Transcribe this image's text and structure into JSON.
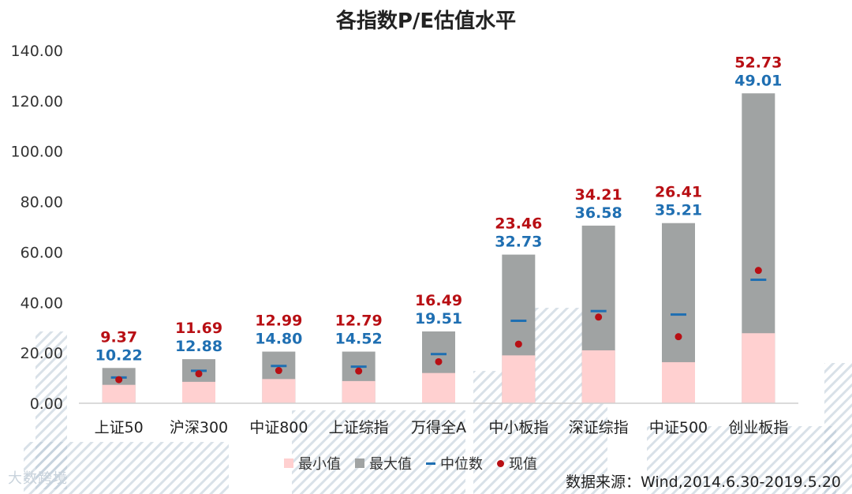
{
  "chart_data": {
    "type": "bar",
    "title": "各指数P/E估值水平",
    "categories": [
      "上证50",
      "沪深300",
      "中证800",
      "上证综指",
      "万得全A",
      "中小板指",
      "深证综指",
      "中证500",
      "创业板指"
    ],
    "ylim": [
      0,
      140
    ],
    "yticks": [
      "0.00",
      "20.00",
      "40.00",
      "60.00",
      "80.00",
      "100.00",
      "120.00",
      "140.00"
    ],
    "series": [
      {
        "name": "最小值",
        "values": [
          7.3,
          8.5,
          9.6,
          8.8,
          12.0,
          19.0,
          21.0,
          16.3,
          27.8
        ],
        "color": "#ffd0d0"
      },
      {
        "name": "最大值",
        "values": [
          14.0,
          17.5,
          20.5,
          20.5,
          28.5,
          59.0,
          70.5,
          71.5,
          123.0
        ],
        "color": "#a0a3a3"
      },
      {
        "name": "中位数",
        "values": [
          10.22,
          12.88,
          14.8,
          14.52,
          19.51,
          32.73,
          36.58,
          35.21,
          49.01
        ],
        "color": "#1f6fb2"
      },
      {
        "name": "现值",
        "values": [
          9.37,
          11.69,
          12.99,
          12.79,
          16.49,
          23.46,
          34.21,
          26.41,
          52.73
        ],
        "color": "#b80f14"
      }
    ],
    "median_labels": [
      "10.22",
      "12.88",
      "14.80",
      "14.52",
      "19.51",
      "32.73",
      "36.58",
      "35.21",
      "49.01"
    ],
    "current_labels": [
      "9.37",
      "11.69",
      "12.99",
      "12.79",
      "16.49",
      "23.46",
      "34.21",
      "26.41",
      "52.73"
    ],
    "legend_position": "bottom",
    "grid": false
  },
  "source_note": "数据来源：Wind,2014.6.30-2019.5.20",
  "watermark_text": "大数跨境"
}
